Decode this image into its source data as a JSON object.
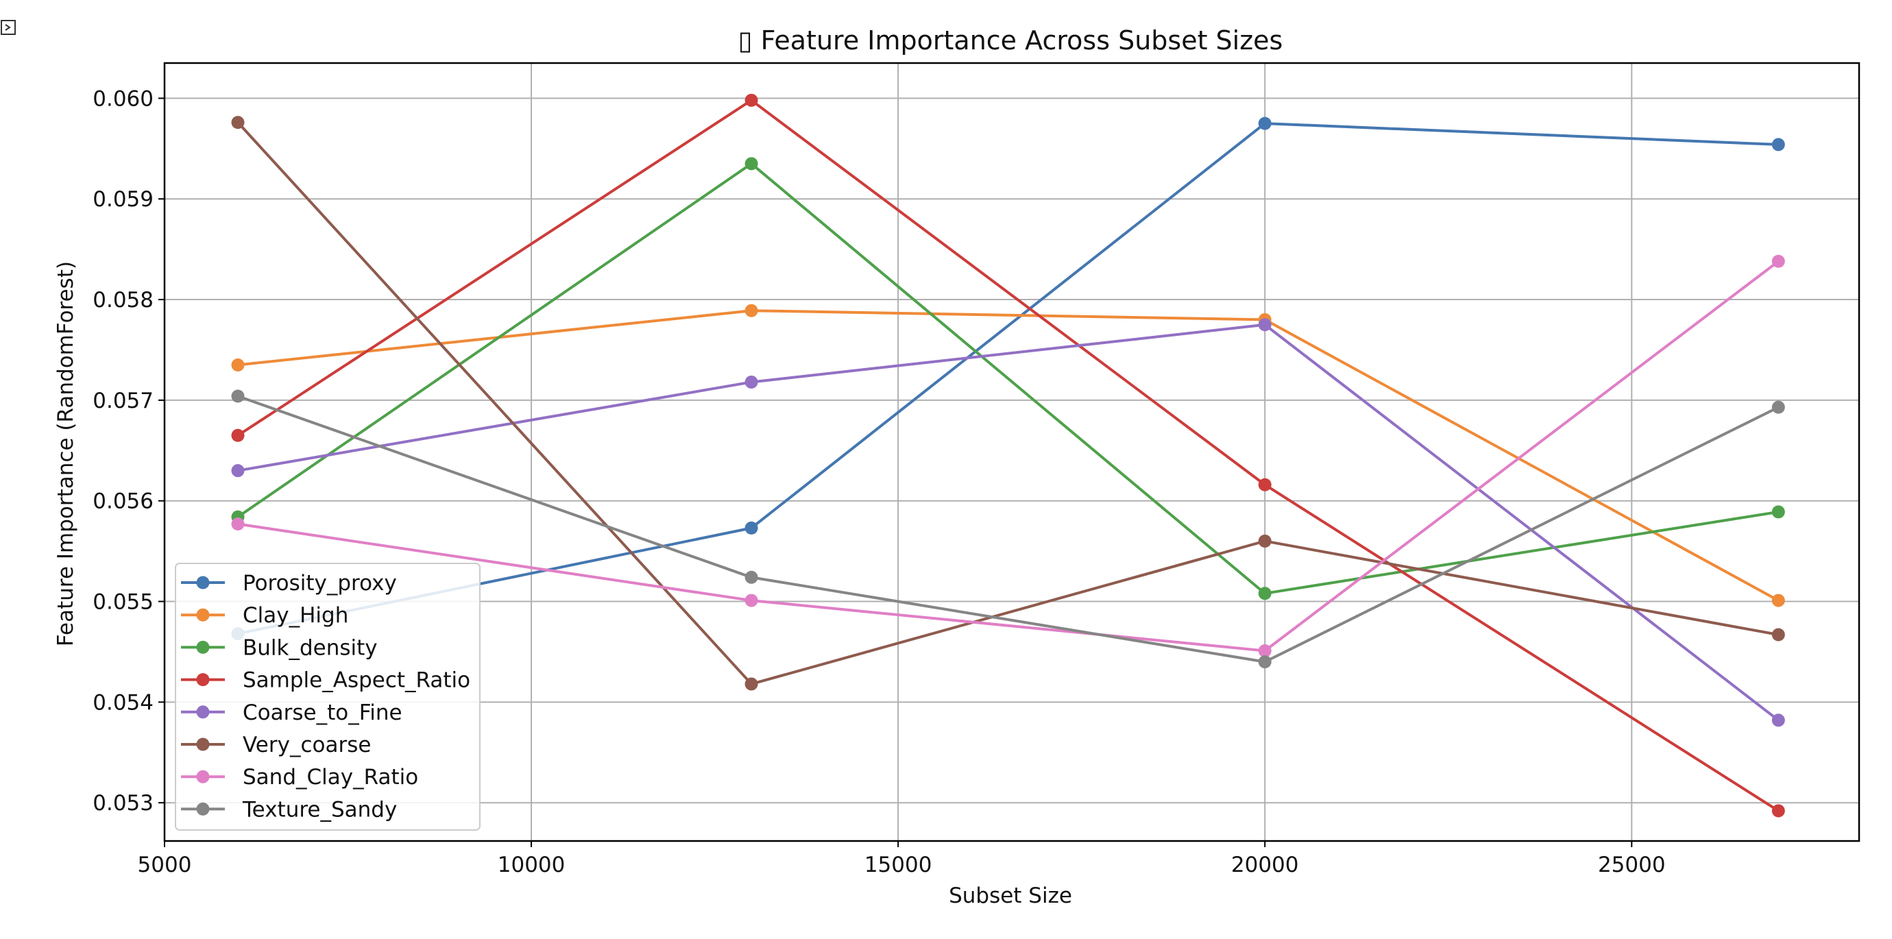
{
  "toolbar": {
    "icon": "expand-icon"
  },
  "chart_data": {
    "type": "line",
    "title": "▯ Feature Importance Across Subset Sizes",
    "xlabel": "Subset Size",
    "ylabel": "Feature Importance (RandomForest)",
    "x": [
      6000,
      13000,
      20000,
      27000
    ],
    "xlim": [
      5000,
      28100
    ],
    "ylim": [
      0.05262,
      0.06035
    ],
    "xticks": [
      5000,
      10000,
      15000,
      20000,
      25000
    ],
    "xtick_labels": [
      "5000",
      "10000",
      "15000",
      "20000",
      "25000"
    ],
    "yticks": [
      0.053,
      0.054,
      0.055,
      0.056,
      0.057,
      0.058,
      0.059,
      0.06
    ],
    "ytick_labels": [
      "0.053",
      "0.054",
      "0.055",
      "0.056",
      "0.057",
      "0.058",
      "0.059",
      "0.060"
    ],
    "grid": true,
    "legend_position": "lower-left",
    "series": [
      {
        "name": "Porosity_proxy",
        "color": "#4477b0",
        "values": [
          0.05468,
          0.05573,
          0.05975,
          0.05954
        ]
      },
      {
        "name": "Clay_High",
        "color": "#ef8a38",
        "values": [
          0.05735,
          0.05789,
          0.0578,
          0.05501
        ]
      },
      {
        "name": "Bulk_density",
        "color": "#4ea14a",
        "values": [
          0.05584,
          0.05935,
          0.05508,
          0.05589
        ]
      },
      {
        "name": "Sample_Aspect_Ratio",
        "color": "#cc3d3b",
        "values": [
          0.05665,
          0.05998,
          0.05616,
          0.05292
        ]
      },
      {
        "name": "Coarse_to_Fine",
        "color": "#9270c4",
        "values": [
          0.0563,
          0.05718,
          0.05775,
          0.05382
        ]
      },
      {
        "name": "Very_coarse",
        "color": "#8e5b4e",
        "values": [
          0.05976,
          0.05418,
          0.0556,
          0.05467
        ]
      },
      {
        "name": "Sand_Clay_Ratio",
        "color": "#e07fc6",
        "values": [
          0.05577,
          0.05501,
          0.05451,
          0.05838
        ]
      },
      {
        "name": "Texture_Sandy",
        "color": "#858585",
        "values": [
          0.05704,
          0.05524,
          0.0544,
          0.05693
        ]
      }
    ]
  }
}
